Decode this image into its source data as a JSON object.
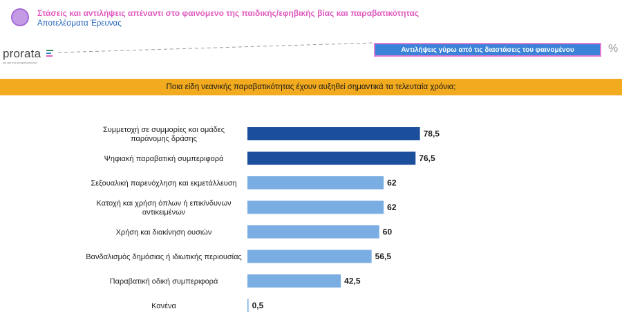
{
  "header": {
    "title": "Στάσεις και αντιλήψεις απέναντι στο φαινόμενο της παιδικής/εφηβικής βίας και παραβατικότητας",
    "subtitle": "Αποτελέσματα Έρευνας"
  },
  "logo": {
    "name": "prorata",
    "tagline": "για μια πιο ανοιχτή κοινωνία"
  },
  "section_label": "Αντιλήψεις γύρω από τις διαστάσεις του φαινομένου",
  "unit_symbol": "%",
  "colors": {
    "dark_bar": "#1b4f9c",
    "light_bar": "#7aaee3",
    "banner": "#f2aa1e",
    "title": "#e05bbf",
    "subtitle": "#2466b9"
  },
  "chart_data": {
    "type": "bar",
    "orientation": "horizontal",
    "title": "Ποια είδη νεανικής παραβατικότητας έχουν αυξηθεί σημαντικά τα τελευταία χρόνια;",
    "categories": [
      [
        "Συμμετοχή σε συμμορίες και ομάδες",
        "παράνομης δράσης"
      ],
      [
        "Ψηφιακή παραβατική συμπεριφορά"
      ],
      [
        "Σεξουαλική παρενόχληση και εκμετάλλευση"
      ],
      [
        "Κατοχή και χρήση όπλων ή επικίνδυνων",
        "αντικειμένων"
      ],
      [
        "Χρήση και διακίνηση ουσιών"
      ],
      [
        "Βανδαλισμός δημόσιας ή ιδιωτικής περιουσίας"
      ],
      [
        "Παραβατική οδική συμπεριφορά"
      ],
      [
        "Κανένα"
      ]
    ],
    "values": [
      78.5,
      76.5,
      62,
      62,
      60,
      56.5,
      42.5,
      0.5
    ],
    "value_labels": [
      "78,5",
      "76,5",
      "62",
      "62",
      "60",
      "56,5",
      "42,5",
      "0,5"
    ],
    "highlight": [
      true,
      true,
      false,
      false,
      false,
      false,
      false,
      false
    ],
    "xlim": [
      0,
      100
    ],
    "unit": "%"
  }
}
